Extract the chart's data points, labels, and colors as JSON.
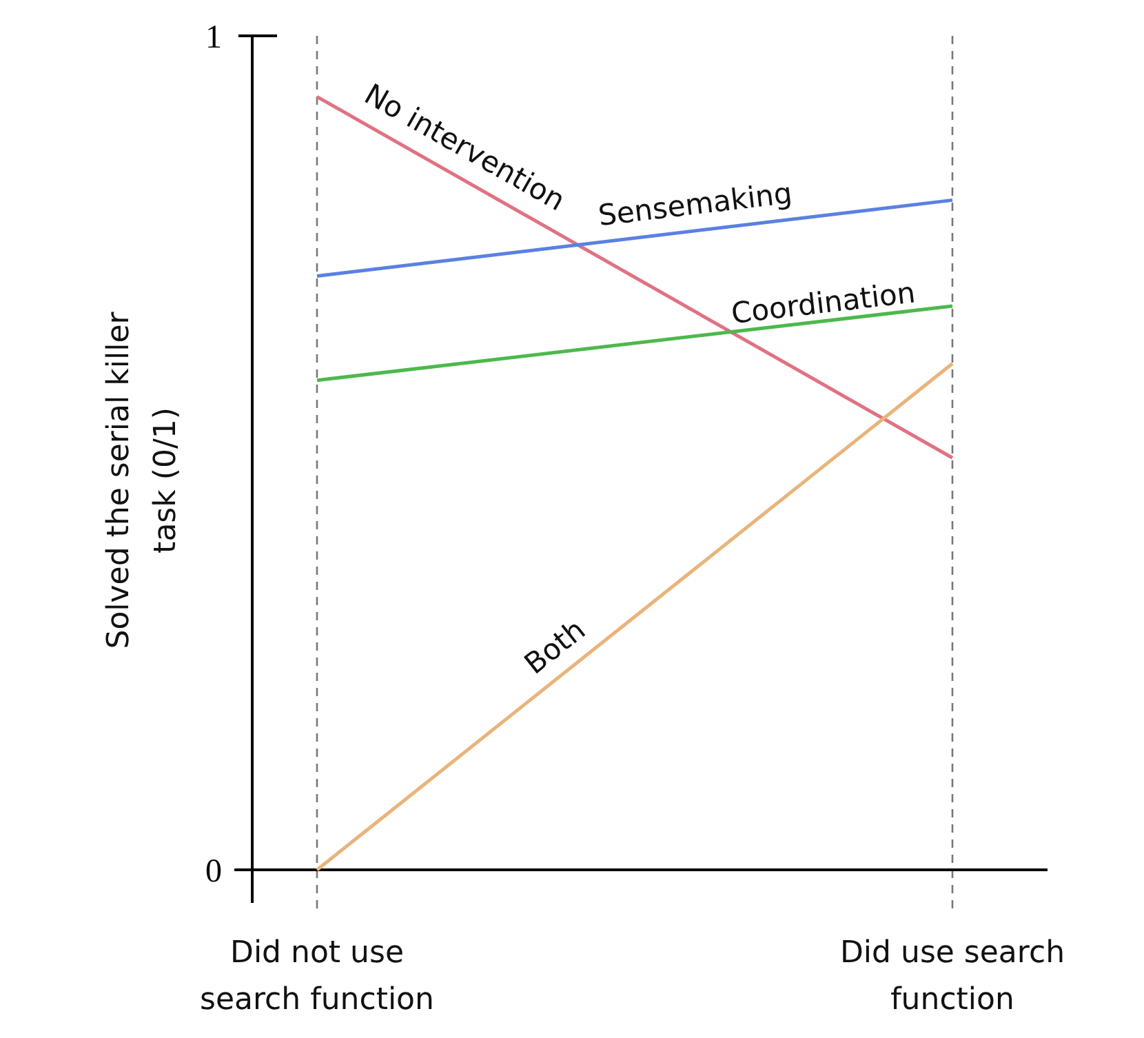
{
  "chart_data": {
    "type": "line",
    "ylabel": "Solved the serial killer task (0/1)",
    "categories": [
      "Did not use search function",
      "Did use search function"
    ],
    "ylim": [
      0,
      1
    ],
    "yticks": [
      0,
      1
    ],
    "grid": "x",
    "marker": "none",
    "line_style": "solid",
    "series": [
      {
        "name": "No intervention",
        "color": "#e07282",
        "values": [
          0.927,
          0.494
        ]
      },
      {
        "name": "Sensemaking",
        "color": "#5b80e2",
        "values": [
          0.712,
          0.803
        ]
      },
      {
        "name": "Coordination",
        "color": "#4cb94c",
        "values": [
          0.587,
          0.676
        ]
      },
      {
        "name": "Both",
        "color": "#e9b47a",
        "values": [
          0,
          0.607
        ]
      }
    ]
  }
}
